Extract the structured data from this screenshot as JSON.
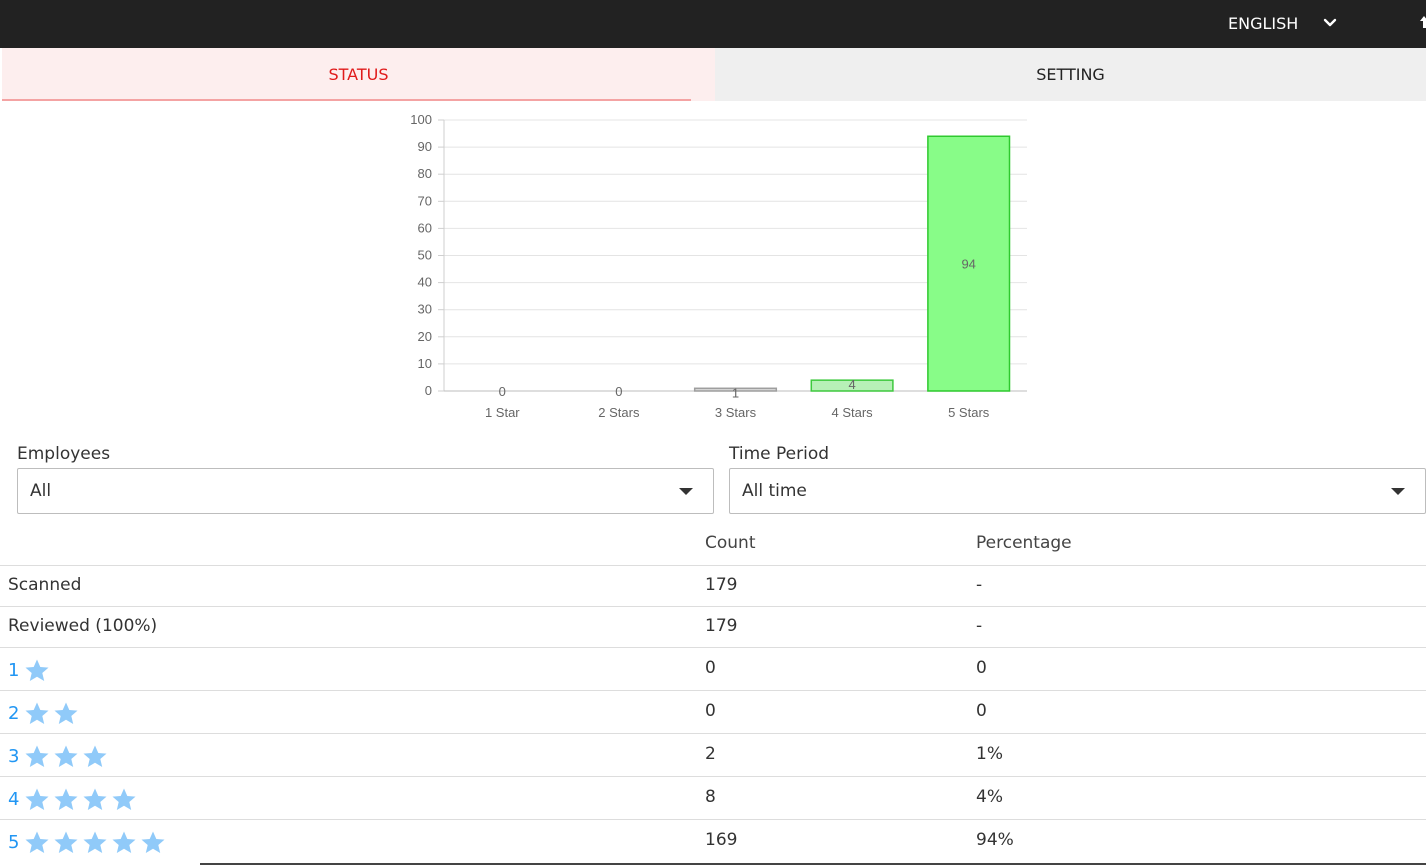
{
  "header": {
    "language": "ENGLISH",
    "language_icon": "chevron-down-icon"
  },
  "tabs": [
    {
      "label": "STATUS",
      "active": true
    },
    {
      "label": "SETTING",
      "active": false
    }
  ],
  "chart_data": {
    "type": "bar",
    "categories": [
      "1 Star",
      "2 Stars",
      "3 Stars",
      "4 Stars",
      "5 Stars"
    ],
    "values": [
      0,
      0,
      1,
      4,
      94
    ],
    "data_labels": [
      "0",
      "0",
      "1",
      "4",
      "94"
    ],
    "ylim": [
      0,
      100
    ],
    "yticks": [
      0,
      10,
      20,
      30,
      40,
      50,
      60,
      70,
      80,
      90,
      100
    ],
    "grid": true,
    "legend": "none",
    "colors": {
      "fills": [
        "#c8c8c8",
        "#c8c8c8",
        "#d6d6d6",
        "#b7f0b7",
        "#88fc88"
      ],
      "strokes": [
        "#9e9e9e",
        "#9e9e9e",
        "#9e9e9e",
        "#3ec93e",
        "#2ec92e"
      ]
    }
  },
  "filters": {
    "employees": {
      "label": "Employees",
      "value": "All"
    },
    "time_period": {
      "label": "Time Period",
      "value": "All time"
    }
  },
  "table": {
    "headers": {
      "count": "Count",
      "percentage": "Percentage"
    },
    "rows": [
      {
        "label": "Scanned",
        "count": "179",
        "percentage": "-"
      },
      {
        "label": "Reviewed (100%)",
        "count": "179",
        "percentage": "-"
      }
    ],
    "rating_rows": [
      {
        "rating": "1",
        "stars": 1,
        "count": "0",
        "percentage": "0"
      },
      {
        "rating": "2",
        "stars": 2,
        "count": "0",
        "percentage": "0"
      },
      {
        "rating": "3",
        "stars": 3,
        "count": "2",
        "percentage": "1%"
      },
      {
        "rating": "4",
        "stars": 4,
        "count": "8",
        "percentage": "4%"
      },
      {
        "rating": "5",
        "stars": 5,
        "count": "169",
        "percentage": "94%"
      }
    ],
    "star_color": "#90caf9",
    "rating_color": "#2196f3"
  }
}
